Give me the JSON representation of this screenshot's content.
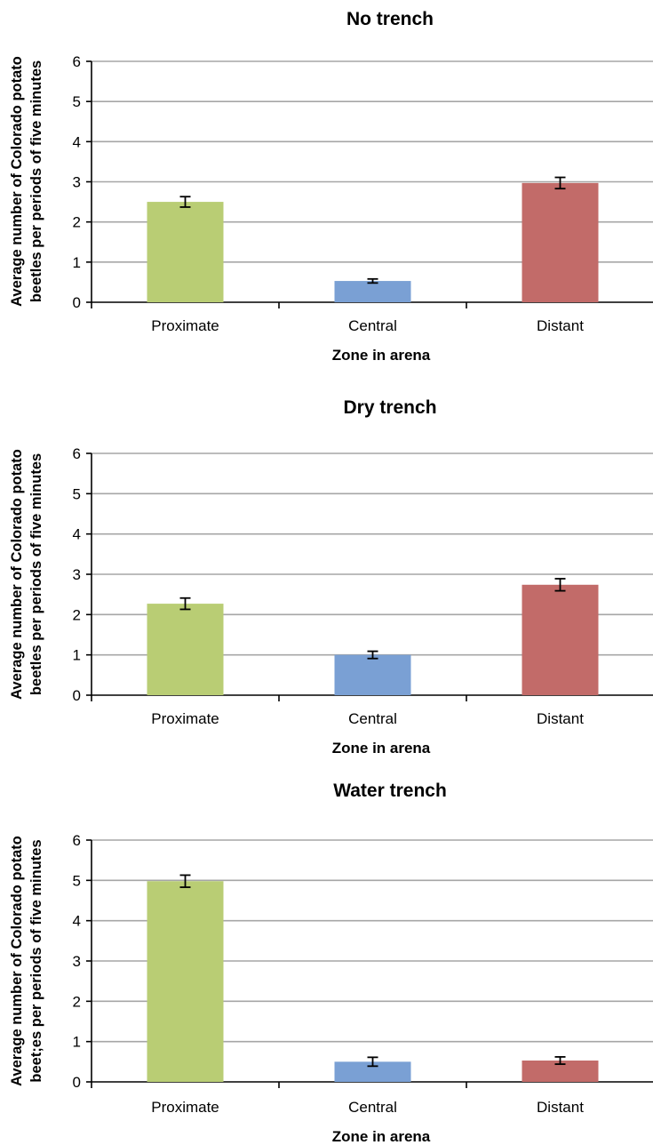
{
  "chart_data": [
    {
      "type": "bar",
      "title": "No trench",
      "xlabel": "Zone in arena",
      "ylabel_lines": [
        "Average number of Colorado potato",
        "beetles per periods of five minutes"
      ],
      "categories": [
        "Proximate",
        "Central",
        "Distant"
      ],
      "values": [
        2.5,
        0.53,
        2.97
      ],
      "errors": [
        0.13,
        0.05,
        0.14
      ],
      "colors": [
        "#b9cd74",
        "#7aa0d4",
        "#c26b69"
      ],
      "ylim": [
        0,
        6
      ],
      "yticks": [
        0,
        1,
        2,
        3,
        4,
        5,
        6
      ],
      "grid": true
    },
    {
      "type": "bar",
      "title": "Dry trench",
      "xlabel": "Zone in arena",
      "ylabel_lines": [
        "Average number of Colorado potato",
        "beetles per periods of five minutes"
      ],
      "categories": [
        "Proximate",
        "Central",
        "Distant"
      ],
      "values": [
        2.27,
        1.0,
        2.74
      ],
      "errors": [
        0.14,
        0.09,
        0.15
      ],
      "colors": [
        "#b9cd74",
        "#7aa0d4",
        "#c26b69"
      ],
      "ylim": [
        0,
        6
      ],
      "yticks": [
        0,
        1,
        2,
        3,
        4,
        5,
        6
      ],
      "grid": true
    },
    {
      "type": "bar",
      "title": "Water trench",
      "xlabel": "Zone in arena",
      "ylabel_lines": [
        "Average number of Colorado potato",
        "beet;es per periods of five minutes"
      ],
      "categories": [
        "Proximate",
        "Central",
        "Distant"
      ],
      "values": [
        4.98,
        0.5,
        0.53
      ],
      "errors": [
        0.15,
        0.11,
        0.09
      ],
      "colors": [
        "#b9cd74",
        "#7aa0d4",
        "#c26b69"
      ],
      "ylim": [
        0,
        6
      ],
      "yticks": [
        0,
        1,
        2,
        3,
        4,
        5,
        6
      ],
      "grid": true
    }
  ]
}
